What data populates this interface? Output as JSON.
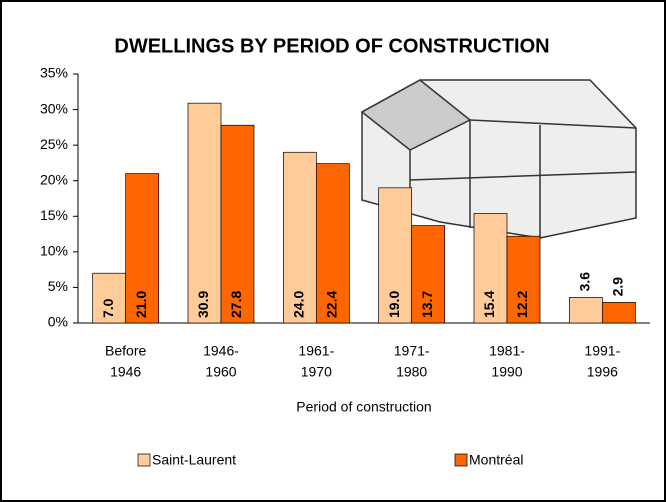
{
  "chart_data": {
    "type": "bar",
    "title": "DWELLINGS BY PERIOD OF CONSTRUCTION",
    "x_label": "Period of construction",
    "categories": [
      [
        "Before",
        "1946"
      ],
      [
        "1946-",
        "1960"
      ],
      [
        "1961-",
        "1970"
      ],
      [
        "1971-",
        "1980"
      ],
      [
        "1981-",
        "1990"
      ],
      [
        "1991-",
        "1996"
      ]
    ],
    "series": [
      {
        "name": "Saint-Laurent",
        "color": "#FFCC99",
        "values": [
          7.0,
          30.9,
          24.0,
          19.0,
          15.4,
          3.6
        ],
        "value_labels": [
          "7.0",
          "30.9",
          "24.0",
          "19.0",
          "15.4",
          "3.6"
        ]
      },
      {
        "name": "Montréal",
        "color": "#FF6600",
        "values": [
          21.0,
          27.8,
          22.4,
          13.7,
          12.2,
          2.9
        ],
        "value_labels": [
          "21.0",
          "27.8",
          "22.4",
          "13.7",
          "12.2",
          "2.9"
        ]
      }
    ],
    "ylim": [
      0,
      35
    ],
    "yticks": [
      {
        "value": 0,
        "label": "0%"
      },
      {
        "value": 5,
        "label": "5%"
      },
      {
        "value": 10,
        "label": "10%"
      },
      {
        "value": 15,
        "label": "15%"
      },
      {
        "value": 20,
        "label": "20%"
      },
      {
        "value": 25,
        "label": "25%"
      },
      {
        "value": 30,
        "label": "30%"
      },
      {
        "value": 35,
        "label": "35%"
      }
    ],
    "legend": "bottom"
  }
}
